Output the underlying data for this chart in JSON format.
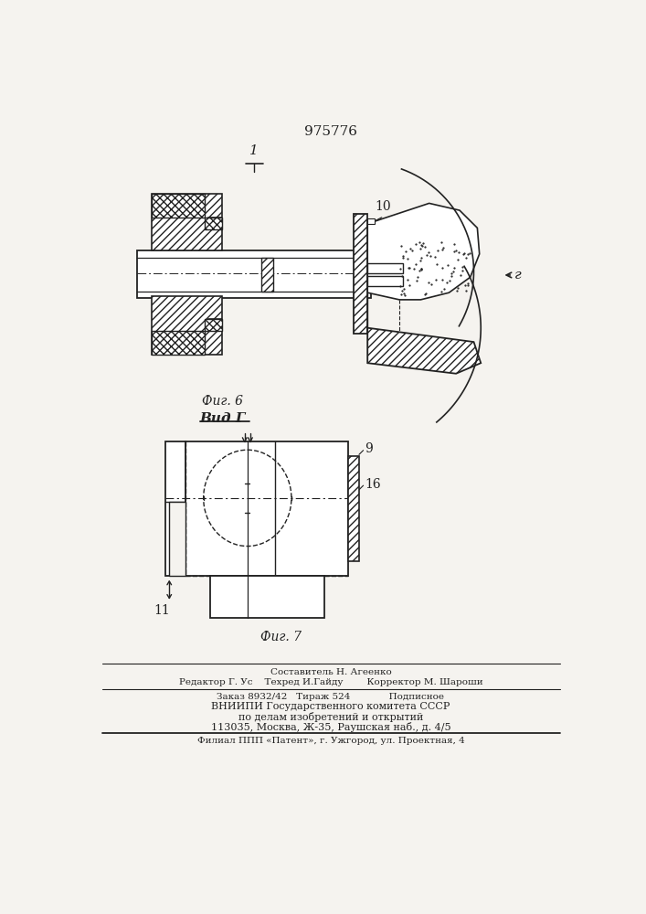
{
  "title": "975776",
  "fig6_label": "Фиг. 6",
  "fig7_label": "Фиг. 7",
  "vid_label": "Вид Г",
  "label_1": "1",
  "label_10": "10",
  "label_r": "г",
  "label_9": "9",
  "label_16": "16",
  "label_11": "11",
  "bottom_text": [
    "Составитель Н. Агеенко",
    "Редактор Г. Ус    Техред И.Гайду        Корректор М. Шароши",
    "Заказ 8932/42   Тираж 524             Подписное",
    "ВНИИПИ Государственного комитета СССР",
    "по делам изобретений и открытий",
    "113035, Москва, Ж-35, Раушская наб., д. 4/5",
    "Филиал ППП «Патент», г. Ужгород, ул. Проектная, 4"
  ],
  "bg_color": "#f5f3ef",
  "line_color": "#222222"
}
